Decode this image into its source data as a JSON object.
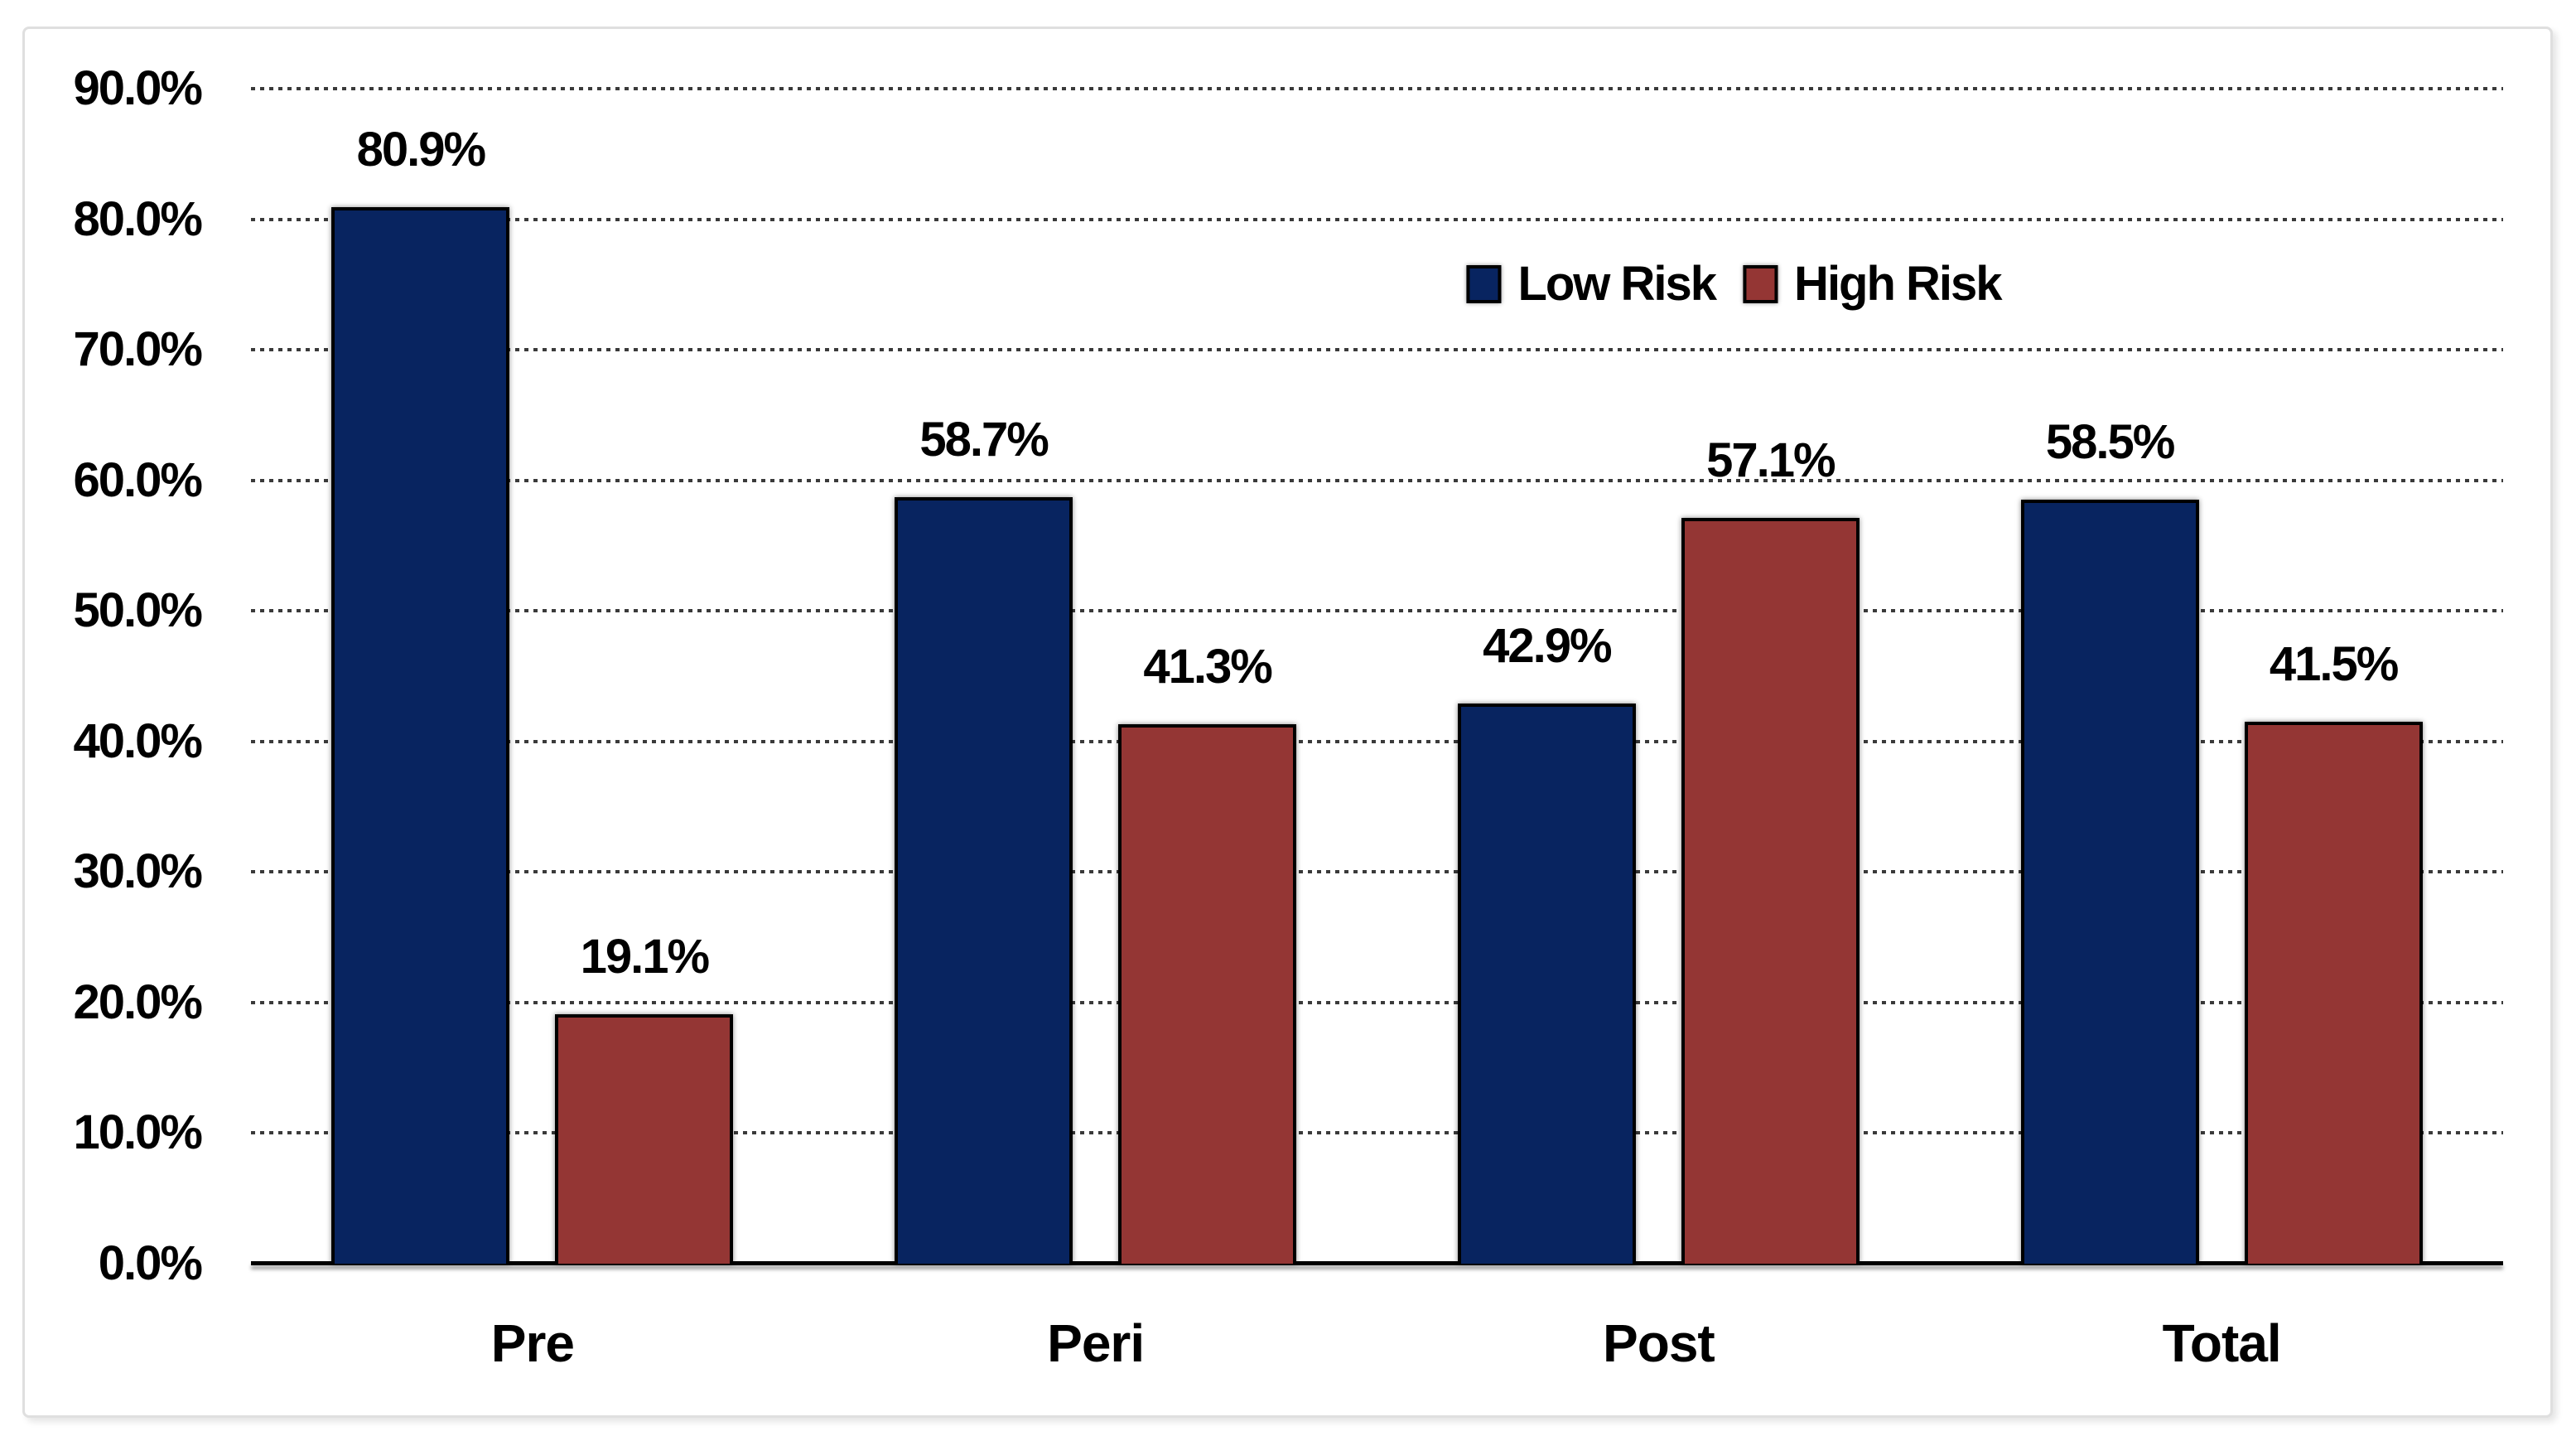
{
  "chart_data": {
    "type": "bar",
    "categories": [
      "Pre",
      "Peri",
      "Post",
      "Total"
    ],
    "series": [
      {
        "name": "Low Risk",
        "color": "#082460",
        "values": [
          80.9,
          58.7,
          42.9,
          58.5
        ],
        "data_labels": [
          "80.9%",
          "58.7%",
          "42.9%",
          "58.5%"
        ]
      },
      {
        "name": "High Risk",
        "color": "#943634",
        "values": [
          19.1,
          41.3,
          57.1,
          41.5
        ],
        "data_labels": [
          "19.1%",
          "41.3%",
          "57.1%",
          "41.5%"
        ]
      }
    ],
    "y_axis": {
      "min": 0,
      "max": 90,
      "tick_interval": 10,
      "tick_labels": [
        "0.0%",
        "10.0%",
        "20.0%",
        "30.0%",
        "40.0%",
        "50.0%",
        "60.0%",
        "70.0%",
        "80.0%",
        "90.0%"
      ]
    },
    "x_axis": {
      "tick_labels": [
        "Pre",
        "Peri",
        "Post",
        "Total"
      ]
    },
    "gridlines": {
      "style": "dotted",
      "orientation": "horizontal",
      "color": "#3a3a3a"
    },
    "legend": {
      "position": "inside-upper-right",
      "entries": [
        "Low Risk",
        "High Risk"
      ]
    },
    "bar_outline_color": "#000000",
    "axis_line_color": "#000000",
    "frame_border_color": "#DFDFDF",
    "background_color": "#ffffff"
  }
}
